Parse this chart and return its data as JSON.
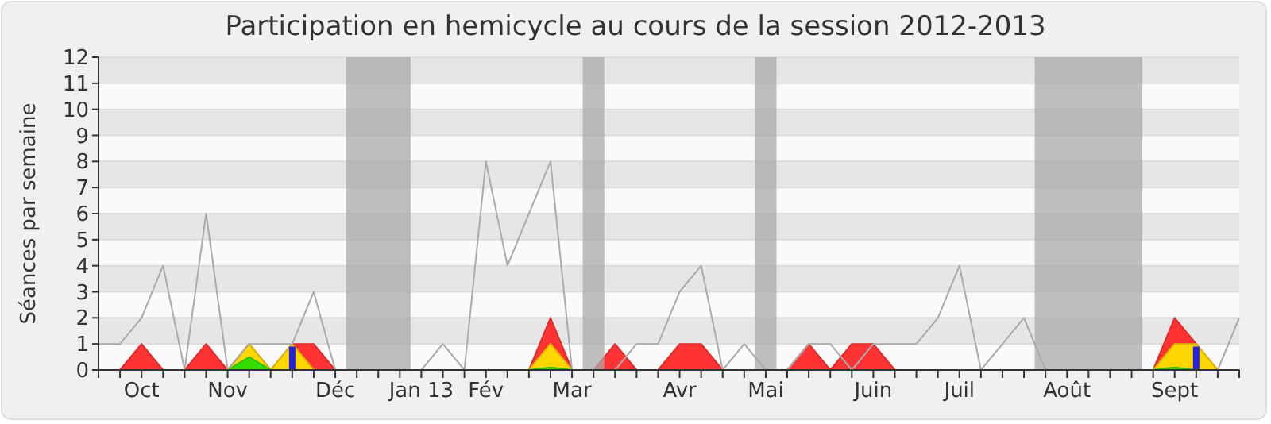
{
  "chart_data": {
    "type": "area",
    "title": "Participation en hemicycle au cours de la session 2012-2013",
    "ylabel": "Séances par semaine",
    "categories": [
      null,
      null,
      "Oct",
      null,
      null,
      null,
      "Nov",
      null,
      null,
      null,
      null,
      "Déc",
      null,
      null,
      null,
      "Jan 13",
      null,
      null,
      "Fév",
      null,
      null,
      null,
      "Mar",
      null,
      null,
      null,
      null,
      "Avr",
      null,
      null,
      null,
      "Mai",
      null,
      null,
      null,
      null,
      "Juin",
      null,
      null,
      null,
      "Juil",
      null,
      null,
      null,
      null,
      "Août",
      null,
      null,
      null,
      null,
      "Sept",
      null,
      null,
      null
    ],
    "ylim": [
      0,
      12
    ],
    "yticks": [
      0,
      1,
      2,
      3,
      4,
      5,
      6,
      7,
      8,
      9,
      10,
      11,
      12
    ],
    "grid": "y",
    "series": [
      {
        "color": "#ff3333",
        "values": [
          0,
          0,
          1,
          0,
          0,
          1,
          0,
          1,
          0,
          1,
          1,
          0,
          0,
          0,
          0,
          0,
          0,
          0,
          0,
          0,
          0,
          2,
          0,
          0,
          1,
          0,
          0,
          1,
          1,
          0,
          0,
          0,
          0,
          1,
          0,
          1,
          1,
          0,
          0,
          0,
          0,
          0,
          0,
          0,
          0,
          0,
          0,
          0,
          0,
          0,
          2,
          1,
          0,
          0
        ]
      },
      {
        "color": "#ffd700",
        "values": [
          0,
          0,
          0,
          0,
          0,
          0,
          0,
          1,
          0,
          1,
          0,
          0,
          0,
          0,
          0,
          0,
          0,
          0,
          0,
          0,
          0,
          1,
          0,
          0,
          0,
          0,
          0,
          0,
          0,
          0,
          0,
          0,
          0,
          0,
          0,
          0,
          0,
          0,
          0,
          0,
          0,
          0,
          0,
          0,
          0,
          0,
          0,
          0,
          0,
          0,
          1,
          1,
          0,
          0
        ]
      },
      {
        "color": "#33dd00",
        "values": [
          0,
          0,
          0,
          0,
          0,
          0,
          0,
          0.5,
          0,
          0,
          0,
          0,
          0,
          0,
          0,
          0,
          0,
          0,
          0,
          0,
          0,
          0.1,
          0,
          0,
          0,
          0,
          0,
          0,
          0,
          0,
          0,
          0,
          0,
          0,
          0,
          0,
          0,
          0,
          0,
          0,
          0,
          0,
          0,
          0,
          0,
          0,
          0,
          0,
          0,
          0,
          0.1,
          0,
          0,
          0
        ]
      },
      {
        "type": "bar",
        "color": "#2222dd",
        "values": [
          null,
          null,
          null,
          null,
          null,
          null,
          null,
          null,
          null,
          0.9,
          null,
          null,
          null,
          null,
          null,
          null,
          null,
          null,
          null,
          null,
          null,
          null,
          null,
          null,
          null,
          null,
          null,
          null,
          null,
          null,
          null,
          null,
          null,
          null,
          null,
          null,
          null,
          null,
          null,
          null,
          null,
          null,
          null,
          null,
          null,
          null,
          null,
          null,
          null,
          null,
          null,
          0.9,
          null,
          null
        ]
      },
      {
        "type": "line",
        "color": "#aaaaaa",
        "values": [
          1,
          1,
          2,
          4,
          0,
          6,
          0,
          1,
          1,
          1,
          3,
          0,
          0,
          0,
          0,
          0,
          1,
          0,
          8,
          4,
          6,
          8,
          0,
          0,
          0,
          1,
          1,
          3,
          4,
          0,
          1,
          0,
          0,
          1,
          1,
          0,
          1,
          1,
          1,
          2,
          4,
          0,
          1,
          2,
          0,
          0,
          0,
          0,
          0,
          0,
          0,
          0,
          0,
          2
        ]
      }
    ]
  }
}
